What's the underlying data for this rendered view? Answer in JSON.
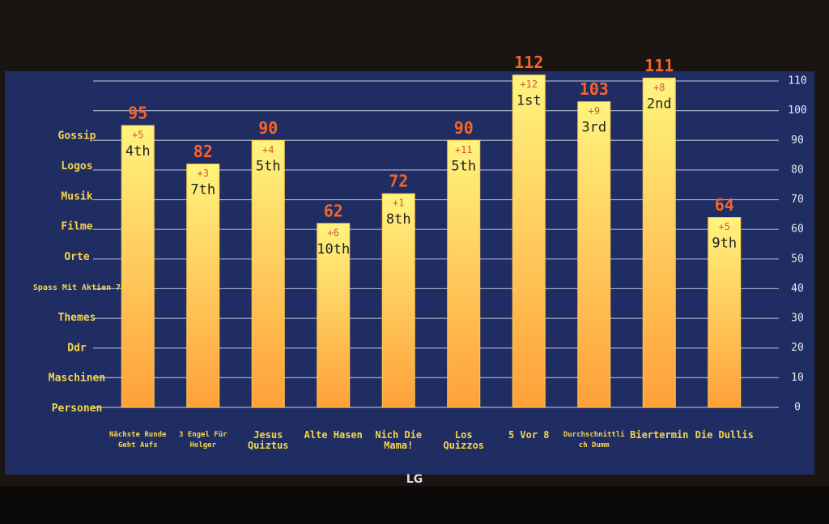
{
  "chart_data": {
    "type": "bar",
    "categories": [
      "Nächste Runde Geht Aufs",
      "3 Engel Für Holger",
      "Jesus Quiztus",
      "Alte Hasen",
      "Nich Die Mama!",
      "Los Quizzos",
      "5 Vor 8",
      "Durchschnittlich Dumm",
      "Biertermin",
      "Die Dullis"
    ],
    "values": [
      95,
      82,
      90,
      62,
      72,
      90,
      112,
      103,
      111,
      64
    ],
    "gains": [
      "+5",
      "+3",
      "+4",
      "+6",
      "+1",
      "+11",
      "+12",
      "+9",
      "+8",
      "+5"
    ],
    "ranks": [
      "4th",
      "7th",
      "5th",
      "10th",
      "8th",
      "5th",
      "1st",
      "3rd",
      "2nd",
      "9th"
    ],
    "rounds": [
      "Gossip",
      "Logos",
      "Musik",
      "Filme",
      "Orte",
      "Spass Mit Aktien 7",
      "Themes",
      "Ddr",
      "Maschinen",
      "Personen"
    ],
    "ylim": [
      0,
      110
    ],
    "yticks": [
      0,
      10,
      20,
      30,
      40,
      50,
      60,
      70,
      80,
      90,
      100,
      110
    ],
    "grid": true,
    "color": "#ffc94a"
  },
  "brand": "LG"
}
